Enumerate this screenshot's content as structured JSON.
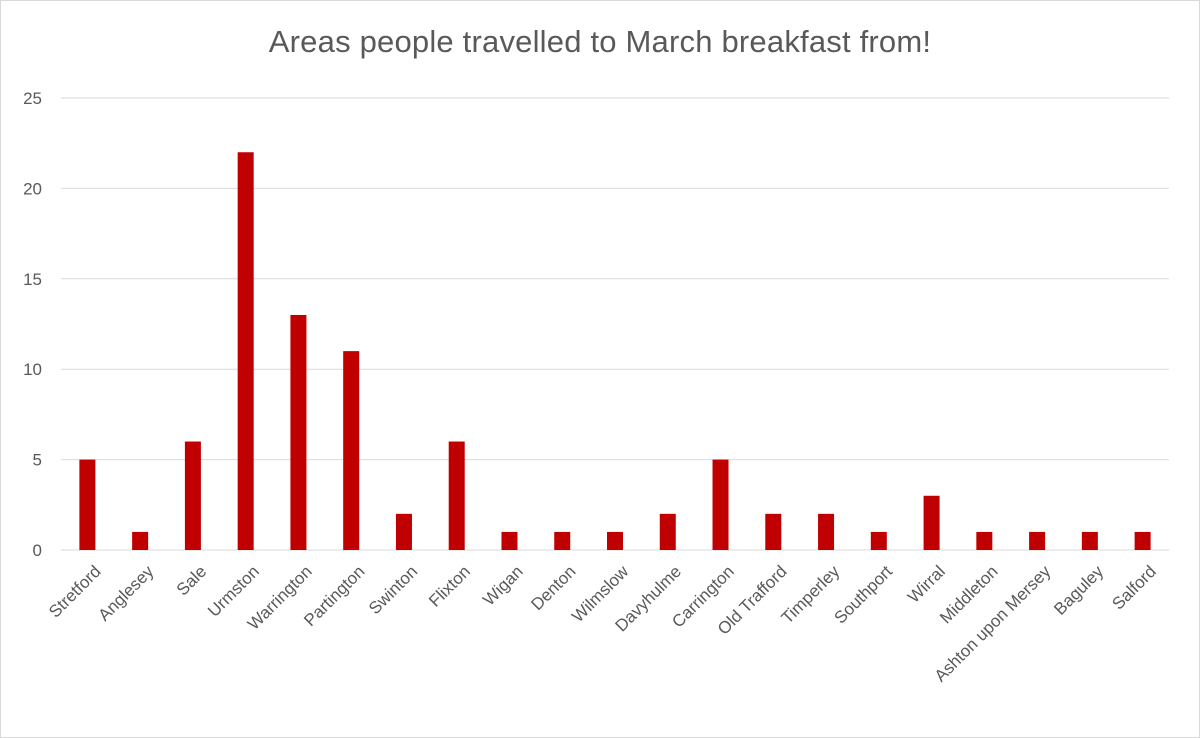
{
  "chart_data": {
    "type": "bar",
    "title": "Areas people travelled to March breakfast from!",
    "xlabel": "",
    "ylabel": "",
    "ylim": [
      0,
      25
    ],
    "yticks": [
      0,
      5,
      10,
      15,
      20,
      25
    ],
    "grid": true,
    "legend": "none",
    "bar_color": "#C00000",
    "categories": [
      "Stretford",
      "Anglesey",
      "Sale",
      "Urmston",
      "Warrington",
      "Partington",
      "Swinton",
      "Flixton",
      "Wigan",
      "Denton",
      "Wilmslow",
      "Davyhulme",
      "Carrington",
      "Old Trafford",
      "Timperley",
      "Southport",
      "Wirral",
      "Middleton",
      "Ashton upon Mersey",
      "Baguley",
      "Salford"
    ],
    "values": [
      5,
      1,
      6,
      22,
      13,
      11,
      2,
      6,
      1,
      1,
      1,
      2,
      5,
      2,
      2,
      1,
      3,
      1,
      1,
      1,
      1
    ]
  }
}
